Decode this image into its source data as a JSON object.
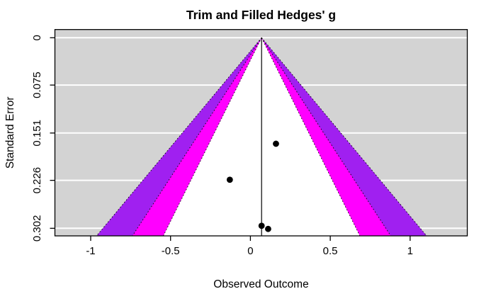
{
  "chart_data": {
    "type": "funnel",
    "title": "Trim and Filled Hedges' g",
    "xlabel": "Observed Outcome",
    "ylabel": "Standard Error",
    "x_ticks": [
      -1,
      -0.5,
      0,
      0.5,
      1
    ],
    "x_tick_labels": [
      "-1",
      "-0.5",
      "0",
      "0.5",
      "1"
    ],
    "se_ticks": [
      0,
      0.075,
      0.151,
      0.226,
      0.302
    ],
    "se_tick_labels": [
      "0",
      "0.075",
      "0.151",
      "0.226",
      "0.302"
    ],
    "xlim": [
      -1.224,
      1.358
    ],
    "selim": [
      -0.013,
      0.314
    ],
    "estimate": 0.07,
    "contours": [
      {
        "name": "outer-contour-band",
        "z": 3.291,
        "color": "#a020f0"
      },
      {
        "name": "middle-contour-band",
        "z": 2.576,
        "color": "#ff00ff"
      },
      {
        "name": "inner-contour-region",
        "z": 1.96,
        "color": "#ffffff"
      }
    ],
    "points": [
      {
        "x": 0.16,
        "se": 0.168
      },
      {
        "x": -0.129,
        "se": 0.225
      },
      {
        "x": 0.07,
        "se": 0.298
      },
      {
        "x": 0.111,
        "se": 0.303
      }
    ],
    "colors": {
      "panel_background": "#d3d3d3",
      "gridline": "#ffffff",
      "point": "#000000",
      "reference_line": "#000000",
      "contour_edge": "#000000",
      "axis": "#000000"
    },
    "grid": "horizontal white lines at standard-error ticks",
    "legend": "none"
  }
}
